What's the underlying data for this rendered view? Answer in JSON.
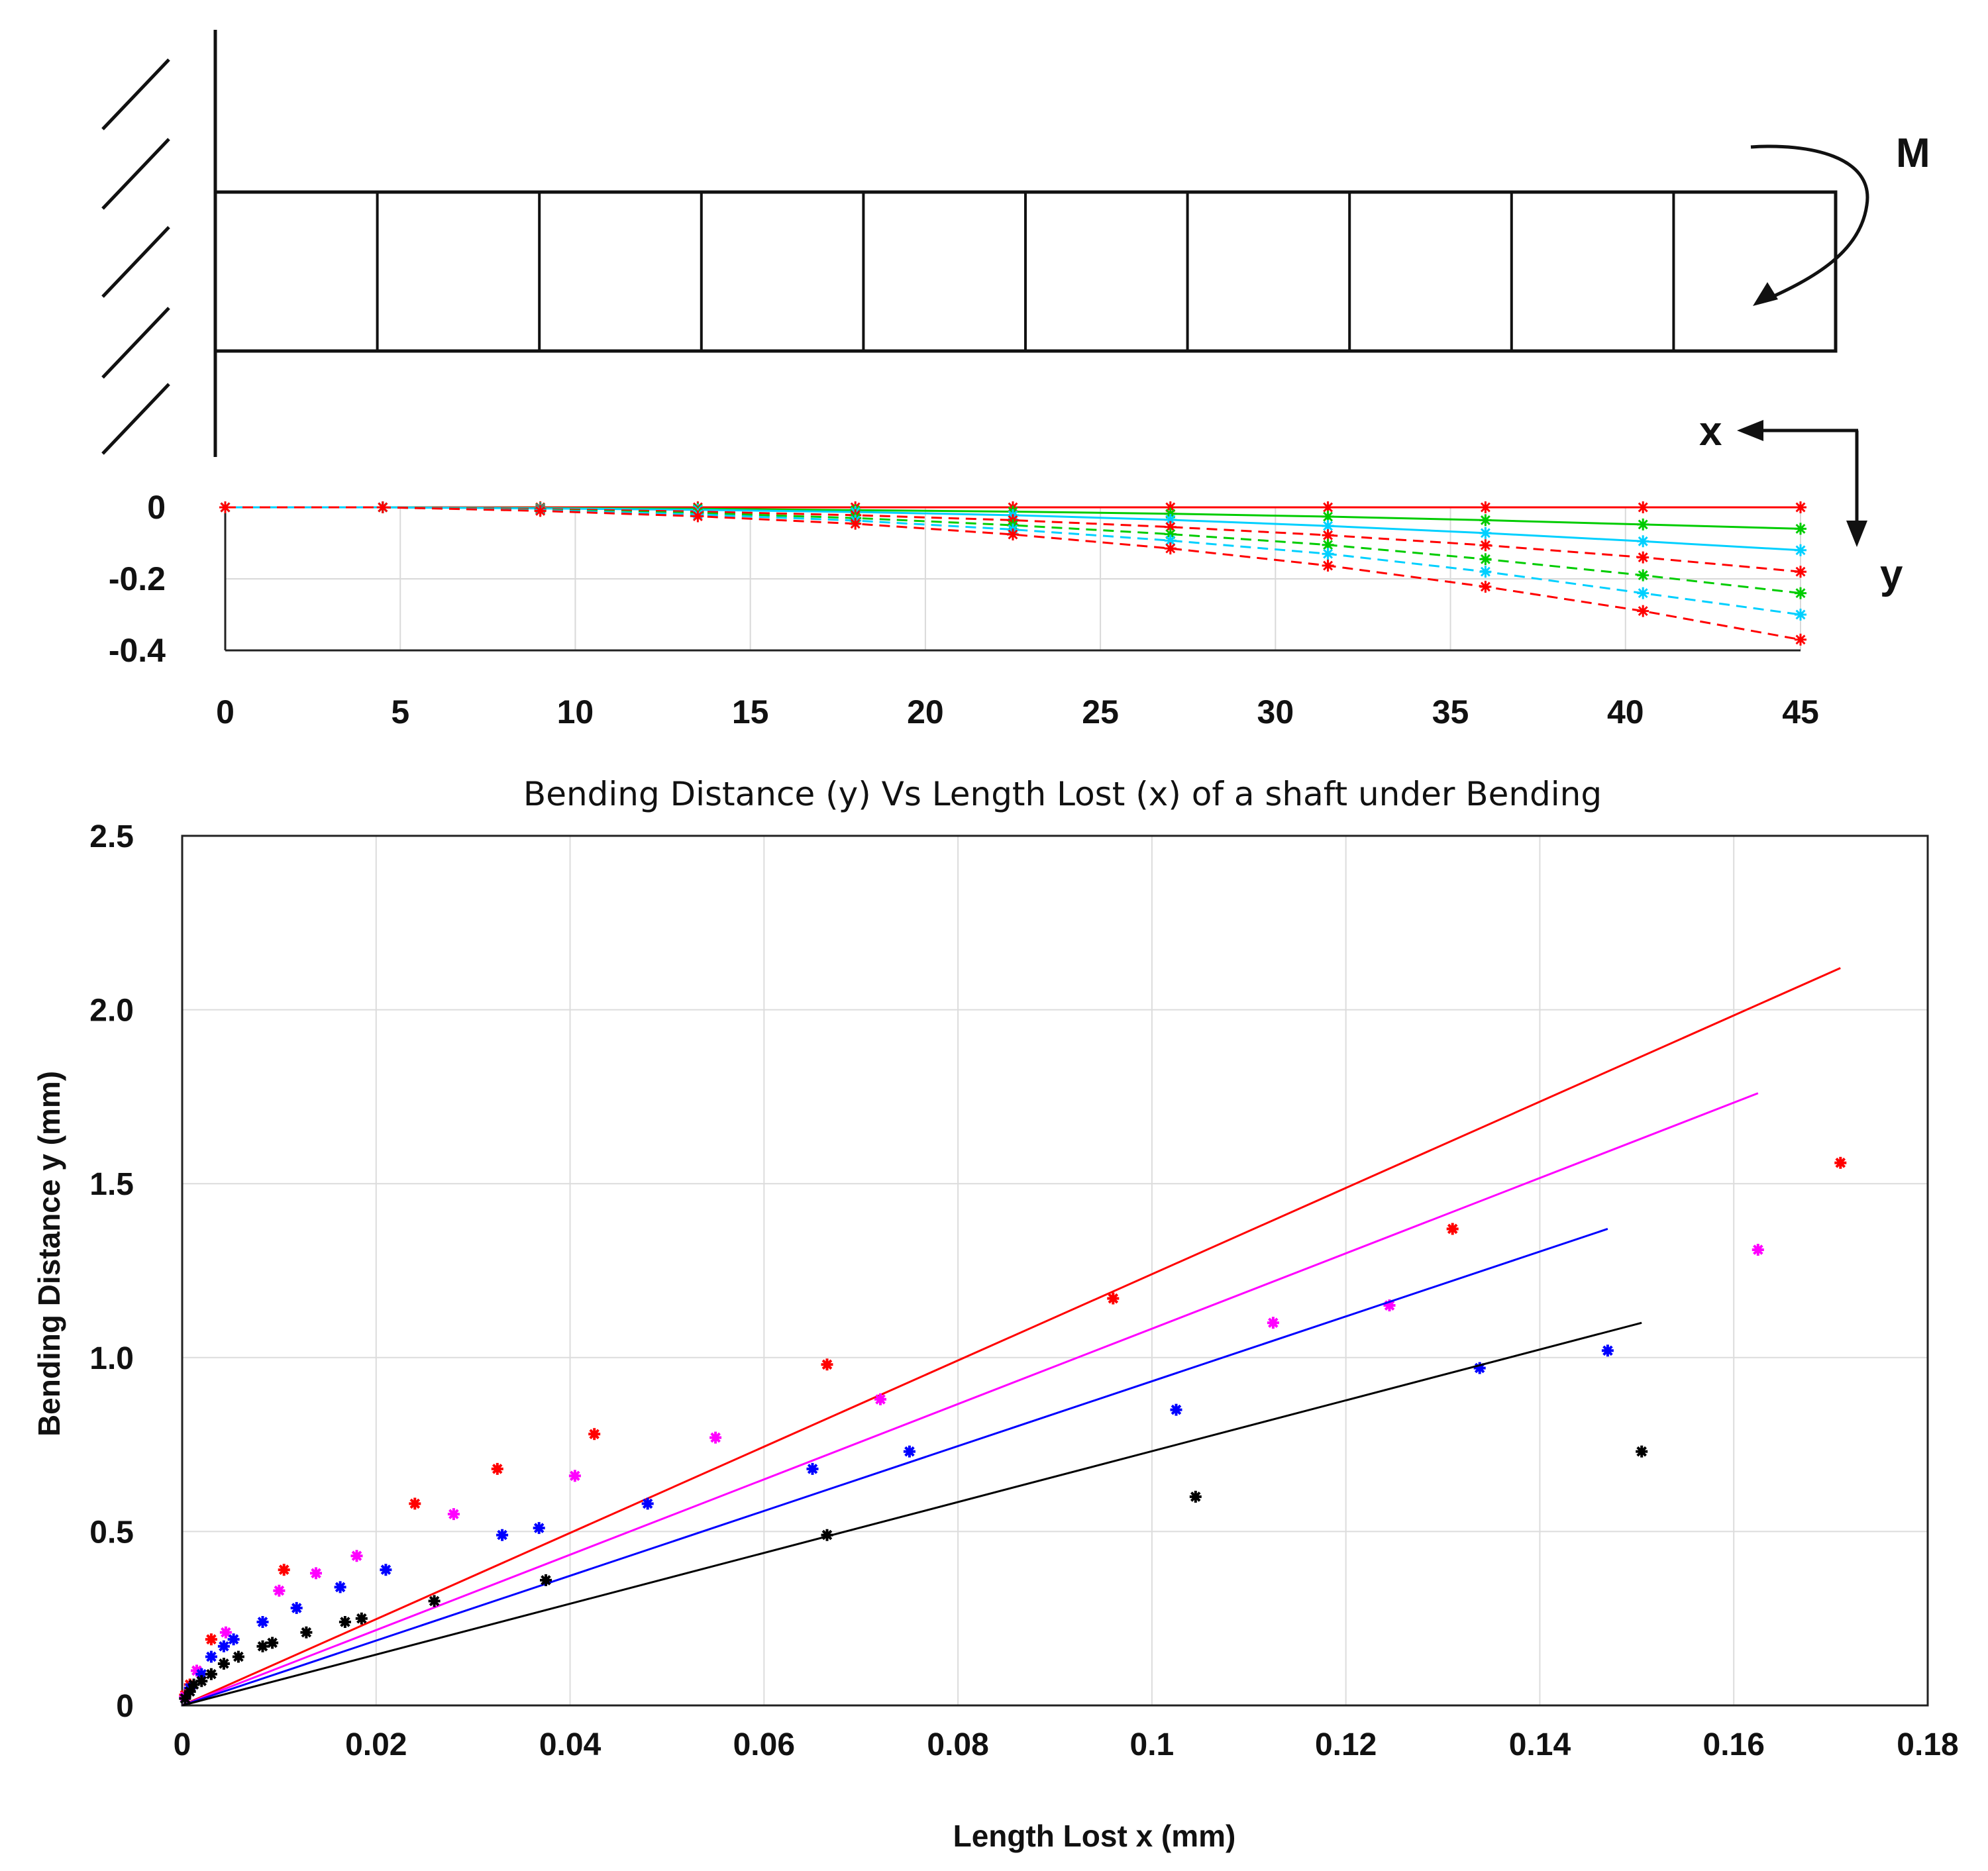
{
  "diagram": {
    "moment_label": "M",
    "x_label": "x",
    "y_label": "y",
    "segments": 10
  },
  "chart_data": [
    {
      "type": "line",
      "title": "",
      "xlabel": "",
      "ylabel": "",
      "xlim": [
        0,
        45
      ],
      "ylim": [
        -0.4,
        0
      ],
      "xticks": [
        0,
        5,
        10,
        15,
        20,
        25,
        30,
        35,
        40,
        45
      ],
      "yticks": [
        0,
        -0.2,
        -0.4
      ],
      "ytick_labels": [
        "0",
        "-0.2",
        "-0.4"
      ],
      "x": [
        0,
        4.5,
        9,
        13.5,
        18,
        22.5,
        27,
        31.5,
        36,
        40.5,
        45
      ],
      "series": [
        {
          "name": "solid-red",
          "color": "#ff0000",
          "dash": false,
          "values": [
            0,
            0,
            0,
            0,
            0,
            0,
            0,
            0,
            0,
            0,
            0
          ]
        },
        {
          "name": "solid-green",
          "color": "#00cc00",
          "dash": false,
          "values": [
            0,
            0,
            -0.002,
            -0.004,
            -0.008,
            -0.012,
            -0.018,
            -0.026,
            -0.036,
            -0.048,
            -0.06
          ]
        },
        {
          "name": "solid-cyan",
          "color": "#00d0ff",
          "dash": false,
          "values": [
            0,
            0,
            -0.003,
            -0.007,
            -0.013,
            -0.022,
            -0.035,
            -0.052,
            -0.072,
            -0.095,
            -0.12
          ]
        },
        {
          "name": "dashed-red-1",
          "color": "#ff0000",
          "dash": true,
          "values": [
            0,
            0,
            -0.005,
            -0.012,
            -0.022,
            -0.036,
            -0.055,
            -0.078,
            -0.106,
            -0.14,
            -0.18
          ]
        },
        {
          "name": "dashed-green",
          "color": "#00cc00",
          "dash": true,
          "values": [
            0,
            0,
            -0.007,
            -0.016,
            -0.03,
            -0.05,
            -0.075,
            -0.105,
            -0.145,
            -0.19,
            -0.24
          ]
        },
        {
          "name": "dashed-cyan",
          "color": "#00d0ff",
          "dash": true,
          "values": [
            0,
            0,
            -0.008,
            -0.02,
            -0.037,
            -0.062,
            -0.093,
            -0.13,
            -0.18,
            -0.24,
            -0.3
          ]
        },
        {
          "name": "dashed-red-2",
          "color": "#ff0000",
          "dash": true,
          "values": [
            0,
            0,
            -0.01,
            -0.025,
            -0.046,
            -0.076,
            -0.115,
            -0.163,
            -0.222,
            -0.29,
            -0.37
          ]
        }
      ]
    },
    {
      "type": "scatter",
      "title": "Bending Distance (y) Vs Length Lost (x) of a shaft under Bending",
      "xlabel": "Length Lost x (mm)",
      "ylabel": "Bending Distance y (mm)",
      "xlim": [
        0,
        0.18
      ],
      "ylim": [
        0,
        2.5
      ],
      "xticks": [
        0,
        0.02,
        0.04,
        0.06,
        0.08,
        0.1,
        0.12,
        0.14,
        0.16,
        0.18
      ],
      "xtick_labels": [
        "0",
        "0.02",
        "0.04",
        "0.06",
        "0.08",
        "0.1",
        "0.12",
        "0.14",
        "0.16",
        "0.18"
      ],
      "yticks": [
        0,
        0.5,
        1.0,
        1.5,
        2.0,
        2.5
      ],
      "ytick_labels": [
        "0",
        "0.5",
        "1.0",
        "1.5",
        "2.0",
        "2.5"
      ],
      "grid": true,
      "series": [
        {
          "name": "red",
          "color": "#ff0000",
          "fit": [
            [
              0,
              0
            ],
            [
              0.171,
              2.12
            ]
          ],
          "points": [
            [
              0.0003,
              0.03
            ],
            [
              0.0008,
              0.06
            ],
            [
              0.0015,
              0.1
            ],
            [
              0.003,
              0.19
            ],
            [
              0.0105,
              0.39
            ],
            [
              0.024,
              0.58
            ],
            [
              0.0325,
              0.68
            ],
            [
              0.0425,
              0.78
            ],
            [
              0.0665,
              0.98
            ],
            [
              0.096,
              1.17
            ],
            [
              0.131,
              1.37
            ],
            [
              0.171,
              1.56
            ]
          ]
        },
        {
          "name": "magenta",
          "color": "#ff00ff",
          "fit": [
            [
              0,
              0
            ],
            [
              0.1625,
              1.76
            ]
          ],
          "points": [
            [
              0.0003,
              0.025
            ],
            [
              0.0008,
              0.05
            ],
            [
              0.0015,
              0.1
            ],
            [
              0.0045,
              0.21
            ],
            [
              0.01,
              0.33
            ],
            [
              0.0138,
              0.38
            ],
            [
              0.018,
              0.43
            ],
            [
              0.028,
              0.55
            ],
            [
              0.0405,
              0.66
            ],
            [
              0.055,
              0.77
            ],
            [
              0.072,
              0.88
            ],
            [
              0.1125,
              1.1
            ],
            [
              0.1245,
              1.15
            ],
            [
              0.1625,
              1.31
            ]
          ]
        },
        {
          "name": "blue",
          "color": "#0000ff",
          "fit": [
            [
              0,
              0
            ],
            [
              0.147,
              1.37
            ]
          ],
          "points": [
            [
              0.0003,
              0.02
            ],
            [
              0.0008,
              0.05
            ],
            [
              0.002,
              0.09
            ],
            [
              0.003,
              0.14
            ],
            [
              0.0043,
              0.17
            ],
            [
              0.0053,
              0.19
            ],
            [
              0.0083,
              0.24
            ],
            [
              0.0118,
              0.28
            ],
            [
              0.0163,
              0.34
            ],
            [
              0.021,
              0.39
            ],
            [
              0.033,
              0.49
            ],
            [
              0.0368,
              0.51
            ],
            [
              0.048,
              0.58
            ],
            [
              0.065,
              0.68
            ],
            [
              0.075,
              0.73
            ],
            [
              0.1025,
              0.85
            ],
            [
              0.1338,
              0.97
            ],
            [
              0.147,
              1.02
            ]
          ]
        },
        {
          "name": "black",
          "color": "#000000",
          "fit": [
            [
              0,
              0
            ],
            [
              0.1505,
              1.1
            ]
          ],
          "points": [
            [
              0.0003,
              0.02
            ],
            [
              0.0008,
              0.04
            ],
            [
              0.0012,
              0.06
            ],
            [
              0.002,
              0.07
            ],
            [
              0.003,
              0.09
            ],
            [
              0.0043,
              0.12
            ],
            [
              0.0058,
              0.14
            ],
            [
              0.0083,
              0.17
            ],
            [
              0.0093,
              0.18
            ],
            [
              0.0128,
              0.21
            ],
            [
              0.0168,
              0.24
            ],
            [
              0.0185,
              0.25
            ],
            [
              0.026,
              0.3
            ],
            [
              0.0375,
              0.36
            ],
            [
              0.0665,
              0.49
            ],
            [
              0.1045,
              0.6
            ],
            [
              0.1505,
              0.73
            ]
          ]
        }
      ]
    }
  ]
}
